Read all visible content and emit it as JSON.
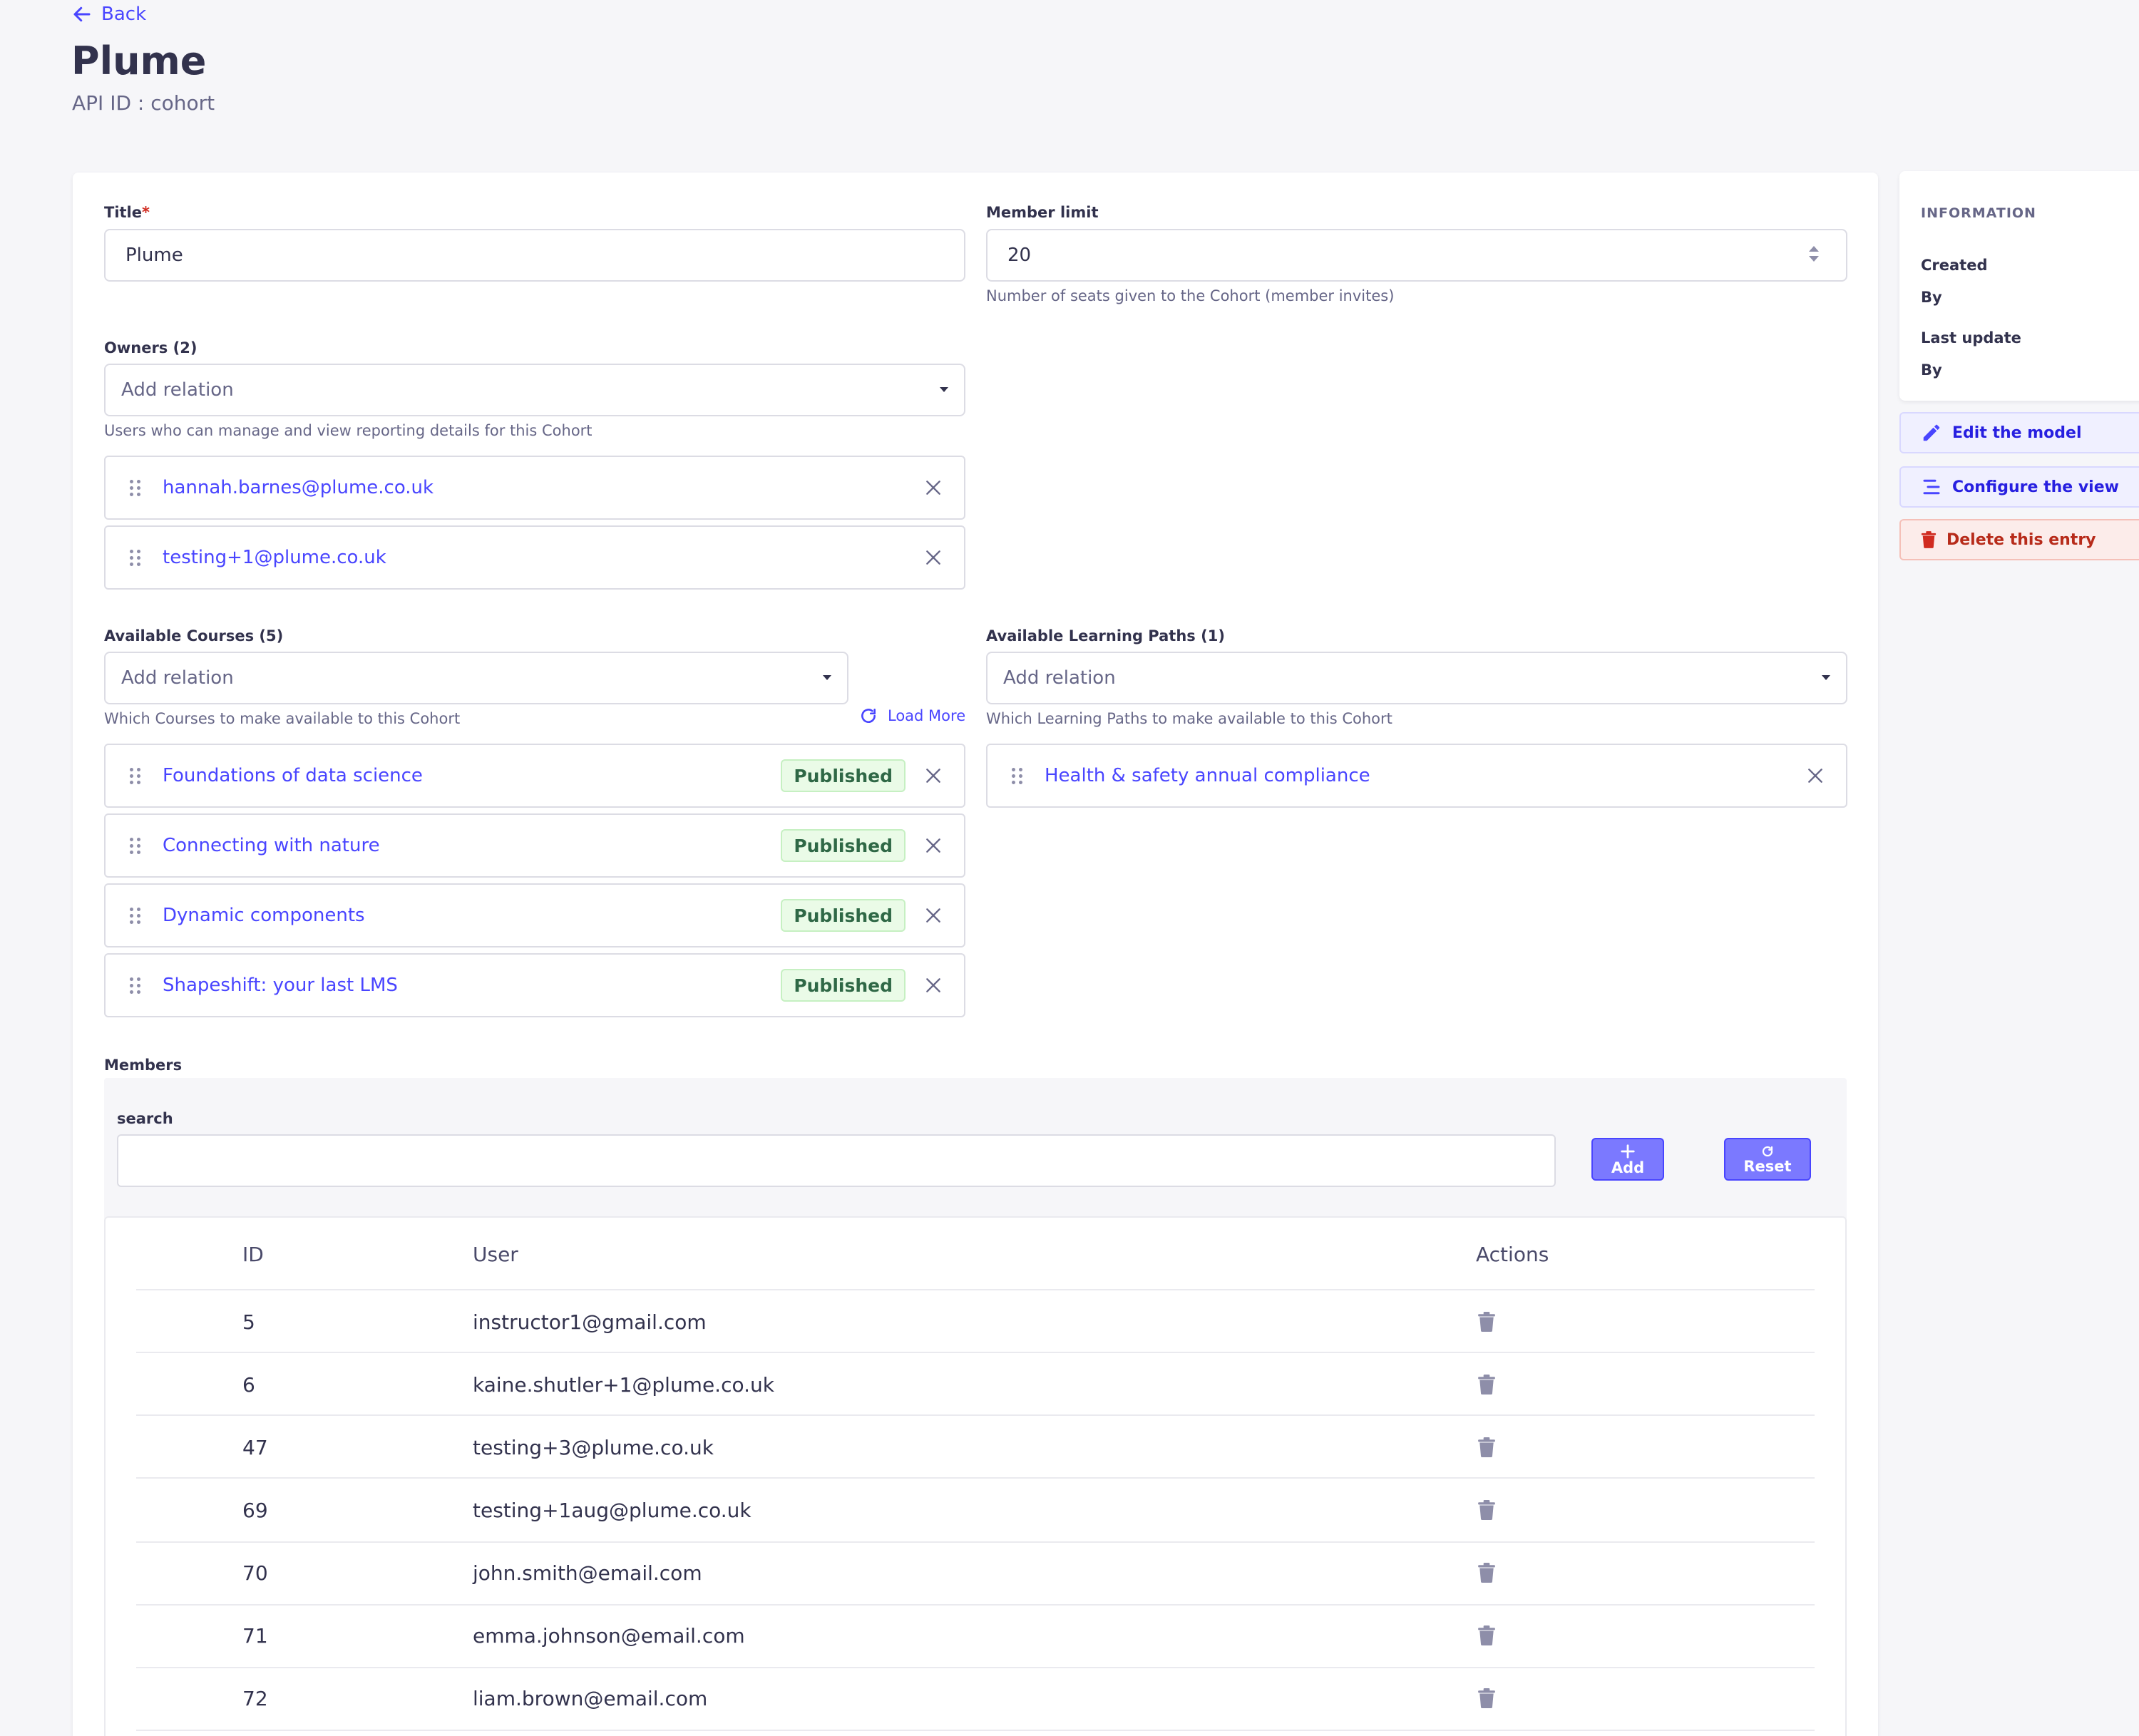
{
  "header": {
    "back_label": "Back",
    "title": "Plume",
    "api_id": "API ID : cohort"
  },
  "form": {
    "title": {
      "label": "Title",
      "required_mark": "*",
      "value": "Plume"
    },
    "member_limit": {
      "label": "Member limit",
      "value": "20",
      "hint": "Number of seats given to the Cohort (member invites)"
    },
    "owners": {
      "label": "Owners (2)",
      "placeholder": "Add relation",
      "hint": "Users who can manage and view reporting details for this Cohort",
      "items": [
        "hannah.barnes@plume.co.uk",
        "testing+1@plume.co.uk"
      ]
    },
    "courses": {
      "label": "Available Courses (5)",
      "placeholder": "Add relation",
      "hint": "Which Courses to make available to this Cohort",
      "load_more": "Load More",
      "items": [
        {
          "name": "Foundations of data science",
          "status": "Published"
        },
        {
          "name": "Connecting with nature",
          "status": "Published"
        },
        {
          "name": "Dynamic components",
          "status": "Published"
        },
        {
          "name": "Shapeshift: your last LMS",
          "status": "Published"
        }
      ]
    },
    "paths": {
      "label": "Available Learning Paths (1)",
      "placeholder": "Add relation",
      "hint": "Which Learning Paths to make available to this Cohort",
      "items": [
        "Health & safety annual compliance"
      ]
    }
  },
  "members": {
    "label": "Members",
    "search_label": "search",
    "add_label": "Add",
    "reset_label": "Reset",
    "columns": [
      "ID",
      "User",
      "Actions"
    ],
    "rows": [
      {
        "id": "5",
        "user": "instructor1@gmail.com"
      },
      {
        "id": "6",
        "user": "kaine.shutler+1@plume.co.uk"
      },
      {
        "id": "47",
        "user": "testing+3@plume.co.uk"
      },
      {
        "id": "69",
        "user": "testing+1aug@plume.co.uk"
      },
      {
        "id": "70",
        "user": "john.smith@email.com"
      },
      {
        "id": "71",
        "user": "emma.johnson@email.com"
      },
      {
        "id": "72",
        "user": "liam.brown@email.com"
      }
    ]
  },
  "sidebar": {
    "info_heading": "INFORMATION",
    "created_label": "Created",
    "created_by_label": "By",
    "updated_label": "Last update",
    "updated_by_label": "By",
    "edit_model": "Edit the model",
    "configure_view": "Configure the view",
    "delete_entry": "Delete this entry"
  },
  "colors": {
    "accent": "#4945ff",
    "danger": "#d02b20",
    "success": "#2f6846"
  }
}
